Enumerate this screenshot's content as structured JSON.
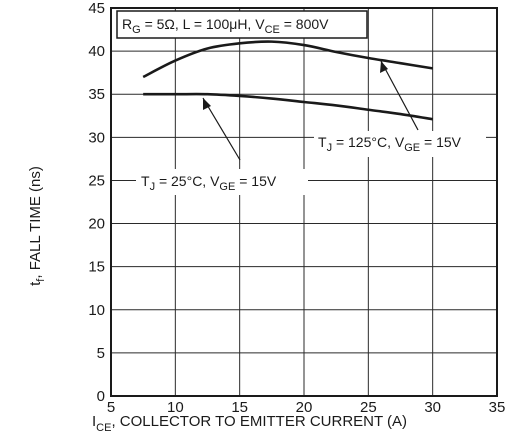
{
  "chart_data": {
    "type": "line",
    "x_axis": {
      "label_main": "I",
      "label_sub": "CE",
      "label_rest": ", COLLECTOR TO EMITTER CURRENT (A)",
      "range": [
        5,
        35
      ],
      "ticks": [
        5,
        10,
        15,
        20,
        25,
        30,
        35
      ]
    },
    "y_axis": {
      "label_main": "t",
      "label_sub": "f",
      "label_rest": ", FALL TIME (ns)",
      "range": [
        0,
        45
      ],
      "ticks": [
        0,
        5,
        10,
        15,
        20,
        25,
        30,
        35,
        40,
        45
      ]
    },
    "grid": true,
    "conditions_box": {
      "p1": "R",
      "p1_sub": "G",
      "p2": " = 5Ω, L = 100μH, V",
      "p2_sub": "CE",
      "p3": " = 800V"
    },
    "series": [
      {
        "name": "T_J = 125°C, V_GE = 15V",
        "x": [
          7.5,
          10,
          12.5,
          15,
          17.5,
          20,
          22.5,
          25,
          27.5,
          30
        ],
        "y": [
          37.0,
          38.9,
          40.3,
          40.9,
          41.1,
          40.7,
          39.9,
          39.2,
          38.6,
          38.0
        ]
      },
      {
        "name": "T_J = 25°C, V_GE = 15V",
        "x": [
          7.5,
          10,
          12.5,
          15,
          17.5,
          20,
          22.5,
          25,
          27.5,
          30
        ],
        "y": [
          35.0,
          35.0,
          35.0,
          34.8,
          34.5,
          34.1,
          33.7,
          33.2,
          32.7,
          32.1
        ]
      }
    ],
    "annotations": [
      {
        "series": 0,
        "t1": "T",
        "t1_sub": "J",
        "t2": " = 125°C, V",
        "t2_sub": "GE",
        "t3": " = 15V"
      },
      {
        "series": 1,
        "t1": "T",
        "t1_sub": "J",
        "t2": " = 25°C, V",
        "t2_sub": "GE",
        "t3": " = 15V"
      }
    ]
  }
}
